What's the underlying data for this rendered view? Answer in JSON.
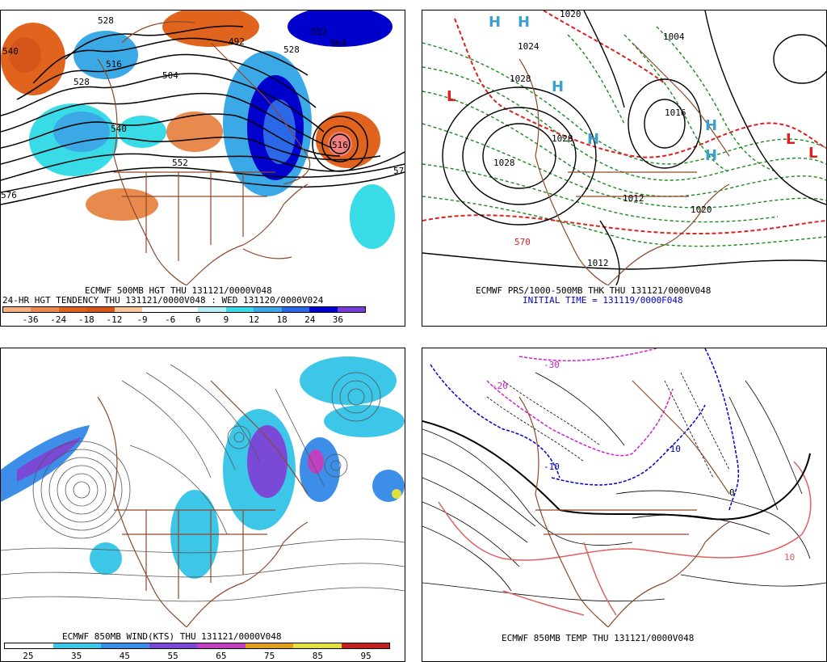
{
  "panels": [
    {
      "id": "p1",
      "caption1": "ECMWF 500MB HGT THU 131121/0000V048",
      "caption2": "24-HR HGT TENDENCY THU 131121/0000V048 : WED 131120/0000V024",
      "scale_colors": [
        "#f2b07e",
        "#e88a4d",
        "#e0641d",
        "#d4561a",
        "#f5c59c",
        "#ffffff",
        "#ffffff",
        "#b3f0f5",
        "#39dbe6",
        "#3aa9e6",
        "#2a68e8",
        "#0000cc",
        "#7a3ad9"
      ],
      "scale_labels": [
        "-36",
        "-24",
        "-18",
        "-12",
        "-9",
        "-6",
        "6",
        "9",
        "12",
        "18",
        "24",
        "36"
      ],
      "contour_labels": [
        "528",
        "540",
        "516",
        "528",
        "504",
        "492",
        "528",
        "552",
        "564",
        "540",
        "552",
        "516",
        "576",
        "576"
      ]
    },
    {
      "id": "p2",
      "caption1": "ECMWF PRS/1000-500MB THK THU 131121/0000V048",
      "caption2": "INITIAL TIME = 131119/0000F048",
      "contour_labels": [
        "1020",
        "1024",
        "1028",
        "1028",
        "1004",
        "1028",
        "1012",
        "1020",
        "570",
        "1016",
        "1012"
      ],
      "pressure_centers": [
        "H",
        "H",
        "H",
        "H",
        "H",
        "H",
        "L",
        "L",
        "L"
      ]
    },
    {
      "id": "p3",
      "caption1": "ECMWF 850MB WIND(KTS) THU 131121/0000V048",
      "scale_colors": [
        "#ffffff",
        "#3cc6e8",
        "#3c8ee8",
        "#7a4ad6",
        "#c040c0",
        "#e0a020",
        "#e0e040",
        "#c02020"
      ],
      "scale_labels": [
        "25",
        "35",
        "45",
        "55",
        "65",
        "75",
        "85",
        "95"
      ]
    },
    {
      "id": "p4",
      "caption1": "ECMWF 850MB TEMP THU 131121/0000V048",
      "contour_labels": [
        "-30",
        "-20",
        "-10",
        "-10",
        "0",
        "10"
      ]
    }
  ],
  "colors": {
    "land": "#8b4a2b",
    "contour": "#000000",
    "thickness": "#e02020",
    "mslp_green": "#1a8a1a"
  }
}
